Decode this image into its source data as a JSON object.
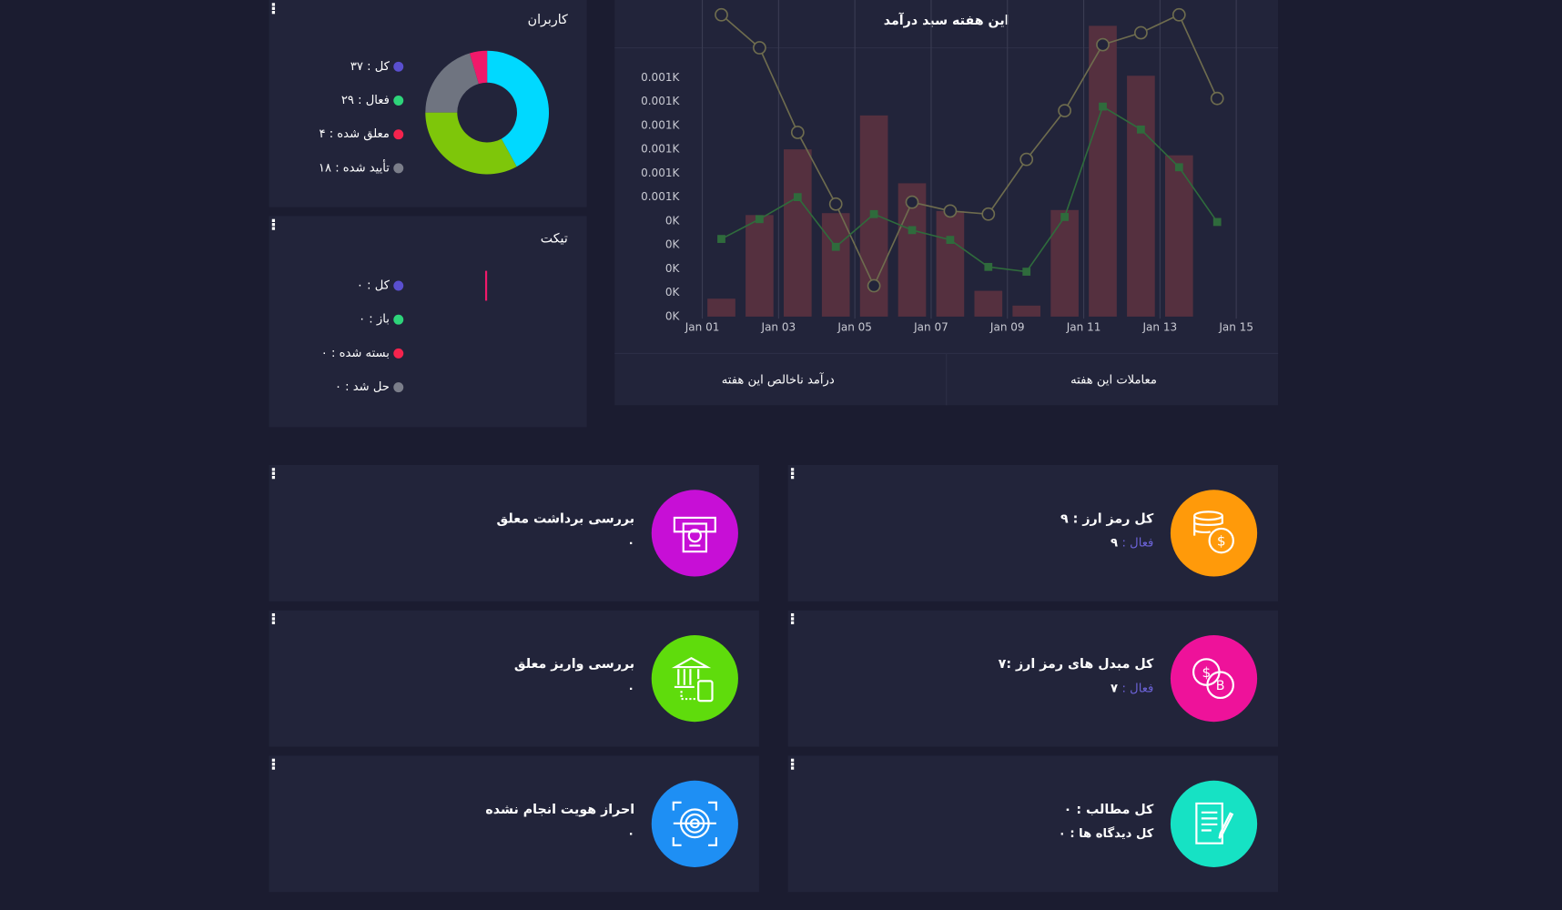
{
  "users": {
    "title": "کاربران",
    "items": [
      {
        "label": "کل : ۳۷",
        "value": 37,
        "dot_color": "#5a4fcf",
        "slice_color": "#00d9ff"
      },
      {
        "label": "فعال : ۲۹",
        "value": 29,
        "dot_color": "#2ed47a",
        "slice_color": "#7ec60a"
      },
      {
        "label": "معلق شده : ۴",
        "value": 4,
        "dot_color": "#f5234d",
        "slice_color": "#f0196a"
      },
      {
        "label": "تأیید شده : ۱۸",
        "value": 18,
        "dot_color": "#7b7e8a",
        "slice_color": "#6f7480"
      }
    ]
  },
  "tickets": {
    "title": "تیکت",
    "items": [
      {
        "label": "کل : ۰",
        "value": 0,
        "dot_color": "#5a4fcf"
      },
      {
        "label": "باز : ۰",
        "value": 0,
        "dot_color": "#2ed47a"
      },
      {
        "label": "بسته شده : ۰",
        "value": 0,
        "dot_color": "#f5234d"
      },
      {
        "label": "حل شد : ۰",
        "value": 0,
        "dot_color": "#7b7e8a"
      }
    ]
  },
  "chart_data": {
    "type": "bar",
    "title": "این هفته سبد درآمد",
    "x": [
      1.5,
      2.5,
      3.5,
      4.5,
      5.5,
      6.5,
      7.5,
      8.5,
      9.5,
      10.5,
      11.5,
      12.5,
      13.5,
      14.5
    ],
    "xlim": [
      1,
      15
    ],
    "xticks": [
      {
        "value": 1,
        "label": "Jan 01"
      },
      {
        "value": 3,
        "label": "Jan 03"
      },
      {
        "value": 5,
        "label": "Jan 05"
      },
      {
        "value": 7,
        "label": "Jan 07"
      },
      {
        "value": 9,
        "label": "Jan 09"
      },
      {
        "value": 11,
        "label": "Jan 11"
      },
      {
        "value": 13,
        "label": "Jan 13"
      },
      {
        "value": 15,
        "label": "Jan 15"
      }
    ],
    "ylim": [
      0,
      1.325
    ],
    "yticks": [
      {
        "value": 0,
        "label": "0K"
      },
      {
        "value": 0.1,
        "label": "0K"
      },
      {
        "value": 0.2,
        "label": "0K"
      },
      {
        "value": 0.3,
        "label": "0K"
      },
      {
        "value": 0.4,
        "label": "0K"
      },
      {
        "value": 0.5,
        "label": "0.001K"
      },
      {
        "value": 0.6,
        "label": "0.001K"
      },
      {
        "value": 0.7,
        "label": "0.001K"
      },
      {
        "value": 0.8,
        "label": "0.001K"
      },
      {
        "value": 0.9,
        "label": "0.001K"
      },
      {
        "value": 1.0,
        "label": "0.001K"
      }
    ],
    "grid": "x",
    "series": [
      {
        "type": "bar",
        "color": "#55303f",
        "values": [
          0.075,
          0.425,
          0.7,
          0.433,
          0.842,
          0.558,
          0.442,
          0.108,
          0.046,
          0.446,
          1.217,
          1.008,
          0.675,
          null
        ]
      },
      {
        "type": "line",
        "marker": "circle",
        "color": "#6e6c4e",
        "values": [
          1.263,
          1.125,
          0.771,
          0.471,
          0.129,
          0.479,
          0.442,
          0.429,
          0.658,
          0.862,
          1.138,
          1.188,
          1.263,
          0.913
        ]
      },
      {
        "type": "line",
        "marker": "square",
        "color": "#2f6b3c",
        "values": [
          0.325,
          0.408,
          0.5,
          0.292,
          0.429,
          0.362,
          0.321,
          0.208,
          0.188,
          0.417,
          0.879,
          0.783,
          0.625,
          0.396
        ]
      }
    ],
    "tabs": [
      "درآمد ناخالص این هفته",
      "معاملات این هفته"
    ]
  },
  "cards": [
    {
      "title": "کل رمز ارز : ۹",
      "sub_label": "فعال :",
      "sub_value": "۹"
    },
    {
      "title": "بررسی برداشت معلق",
      "value": "۰"
    },
    {
      "title": "کل مبدل های رمز ارز :۷",
      "sub_label": "فعال :",
      "sub_value": "۷"
    },
    {
      "title": "بررسی واریز معلق",
      "value": "۰"
    },
    {
      "title": "کل مطالب : ۰",
      "value": "کل دیدگاه ها : ۰"
    },
    {
      "title": "احراز هویت انجام نشده",
      "value": "۰"
    }
  ]
}
